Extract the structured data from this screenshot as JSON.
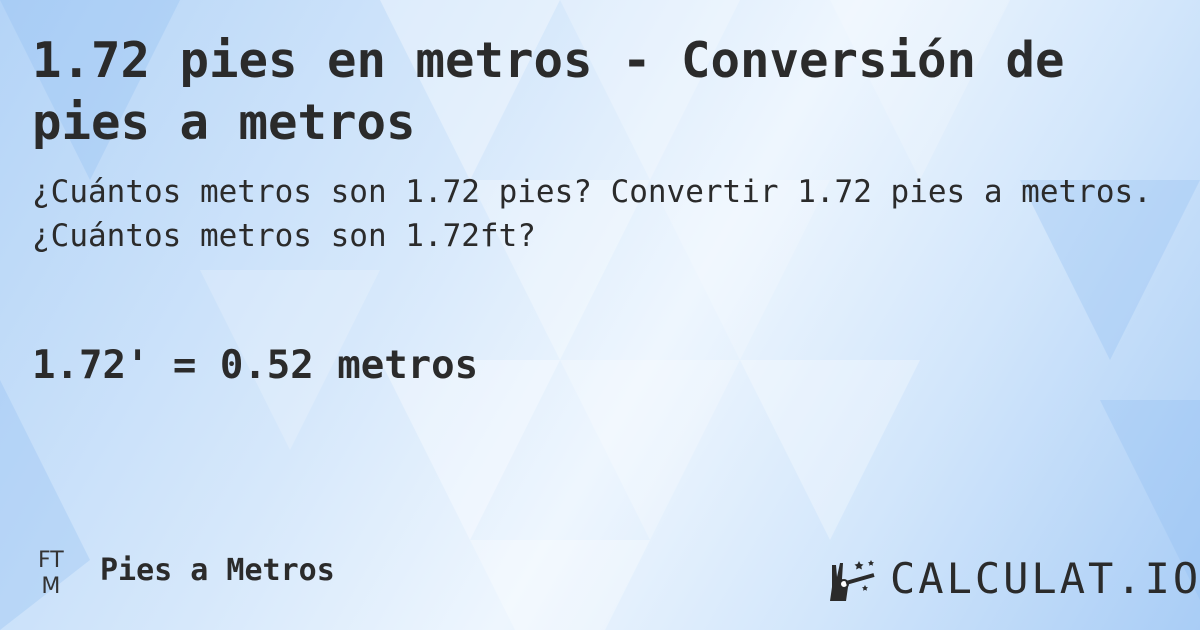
{
  "header": {
    "title": "1.72 pies en metros - Conversión de pies a metros",
    "subtitle": "¿Cuántos metros son 1.72 pies? Convertir 1.72 pies a metros. ¿Cuántos metros son 1.72ft?"
  },
  "result": "1.72' = 0.52 metros",
  "footer": {
    "badge_top": "FT",
    "badge_bottom": "M",
    "category": "Pies a Metros",
    "logo_text": "CALCULAT.IO",
    "logo_icon": "hand-magic-wand-icon"
  },
  "colors": {
    "text": "#2b2b2b",
    "background": "#cfe4fa"
  }
}
